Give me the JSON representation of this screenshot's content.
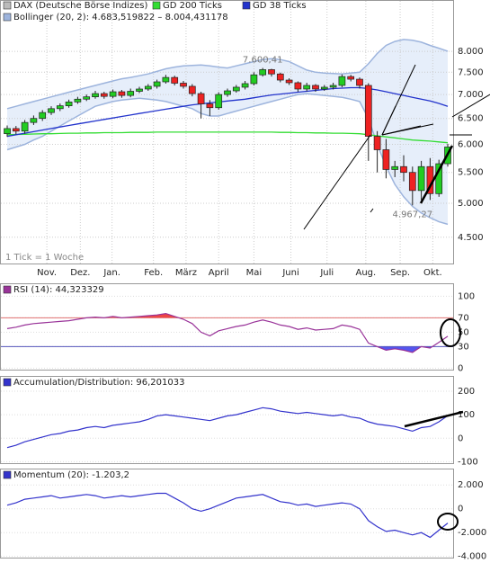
{
  "chart_data": [
    {
      "type": "candlestick",
      "name": "DAX (Deutsche Börse Indizes)",
      "open": [
        6200,
        6300,
        6250,
        6420,
        6500,
        6620,
        6700,
        6760,
        6840,
        6900,
        6950,
        7020,
        6960,
        7060,
        6980,
        7070,
        7120,
        7180,
        7280,
        7380,
        7250,
        7180,
        7020,
        6800,
        6720,
        7000,
        7080,
        7160,
        7240,
        7440,
        7560,
        7460,
        7320,
        7260,
        7120,
        7200,
        7120,
        7160,
        7200,
        7400,
        7340,
        7200,
        6150,
        5900,
        5550,
        5600,
        5500,
        5200,
        5600,
        5150,
        5650
      ],
      "high": [
        6360,
        6350,
        6470,
        6560,
        6670,
        6750,
        6810,
        6890,
        6950,
        7000,
        7080,
        7060,
        7110,
        7100,
        7130,
        7170,
        7230,
        7330,
        7440,
        7420,
        7300,
        7230,
        7060,
        6880,
        7050,
        7130,
        7210,
        7300,
        7500,
        7600.41,
        7580,
        7490,
        7360,
        7290,
        7260,
        7230,
        7210,
        7260,
        7450,
        7440,
        7380,
        7250,
        6250,
        6100,
        5700,
        5800,
        5600,
        5700,
        5750,
        5720,
        6010
      ],
      "low": [
        6140,
        6190,
        6200,
        6370,
        6450,
        6570,
        6650,
        6720,
        6800,
        6860,
        6910,
        6910,
        6920,
        6930,
        6940,
        7030,
        7080,
        7130,
        7240,
        7200,
        7130,
        6960,
        6500,
        6550,
        6680,
        6950,
        7040,
        7110,
        7200,
        7400,
        7400,
        7270,
        7210,
        7060,
        7070,
        7060,
        7080,
        7110,
        7160,
        7290,
        7130,
        5700,
        5500,
        5400,
        5420,
        5350,
        4967.27,
        5050,
        5050,
        5100,
        5600
      ],
      "close": [
        6300,
        6250,
        6420,
        6500,
        6620,
        6700,
        6760,
        6840,
        6900,
        6950,
        7020,
        6960,
        7060,
        6980,
        7070,
        7120,
        7180,
        7280,
        7380,
        7250,
        7180,
        7020,
        6800,
        6720,
        7000,
        7080,
        7160,
        7240,
        7440,
        7560,
        7460,
        7320,
        7260,
        7120,
        7200,
        7120,
        7160,
        7200,
        7400,
        7340,
        7200,
        6150,
        5900,
        5550,
        5600,
        5500,
        5200,
        5600,
        5150,
        5650,
        5950
      ],
      "up_color": "#22cc22",
      "down_color": "#ee2222",
      "legend_color": "#bbbbbb",
      "series": [
        {
          "name": "GD 200 Ticks",
          "color": "#33dd33",
          "values": [
            6180,
            6185,
            6190,
            6195,
            6200,
            6200,
            6205,
            6210,
            6210,
            6215,
            6215,
            6220,
            6220,
            6220,
            6225,
            6225,
            6225,
            6230,
            6230,
            6230,
            6230,
            6230,
            6230,
            6230,
            6230,
            6230,
            6230,
            6230,
            6230,
            6230,
            6230,
            6225,
            6225,
            6220,
            6220,
            6215,
            6215,
            6210,
            6210,
            6205,
            6200,
            6180,
            6160,
            6140,
            6120,
            6100,
            6080,
            6070,
            6060,
            6045,
            6030
          ]
        },
        {
          "name": "GD 38 Ticks",
          "color": "#2233cc",
          "values": [
            6150,
            6180,
            6210,
            6240,
            6270,
            6300,
            6330,
            6360,
            6390,
            6420,
            6450,
            6480,
            6510,
            6540,
            6570,
            6600,
            6630,
            6660,
            6690,
            6720,
            6750,
            6780,
            6800,
            6820,
            6840,
            6860,
            6880,
            6900,
            6930,
            6960,
            6990,
            7010,
            7030,
            7050,
            7070,
            7090,
            7110,
            7130,
            7140,
            7150,
            7150,
            7130,
            7100,
            7060,
            7020,
            6980,
            6940,
            6900,
            6860,
            6810,
            6750
          ]
        }
      ],
      "band": {
        "name": "Bollinger (20, 2): 4.683,519822 – 8.004,431178",
        "color": "#9db4dd",
        "fill": "#e6eefa",
        "upper": [
          6700,
          6750,
          6800,
          6850,
          6900,
          6950,
          7000,
          7050,
          7100,
          7150,
          7200,
          7250,
          7300,
          7350,
          7380,
          7420,
          7460,
          7520,
          7580,
          7620,
          7650,
          7660,
          7670,
          7650,
          7620,
          7600,
          7650,
          7700,
          7750,
          7800,
          7820,
          7800,
          7750,
          7650,
          7550,
          7500,
          7480,
          7470,
          7460,
          7480,
          7500,
          7700,
          7950,
          8150,
          8250,
          8300,
          8280,
          8230,
          8150,
          8080,
          8004.431178
        ],
        "lower": [
          5900,
          5950,
          6000,
          6080,
          6150,
          6250,
          6350,
          6450,
          6550,
          6650,
          6750,
          6800,
          6850,
          6880,
          6900,
          6920,
          6900,
          6880,
          6850,
          6800,
          6750,
          6700,
          6600,
          6550,
          6550,
          6600,
          6650,
          6700,
          6750,
          6800,
          6850,
          6900,
          6950,
          7000,
          7020,
          7000,
          6980,
          6960,
          6940,
          6900,
          6850,
          6500,
          6000,
          5600,
          5300,
          5100,
          4950,
          4850,
          4780,
          4720,
          4683.519822
        ]
      },
      "log_scale": true,
      "ylim": [
        4160,
        8700
      ],
      "yticks": [
        {
          "value": 8000,
          "label": "8.000"
        },
        {
          "value": 7500,
          "label": "7.500"
        },
        {
          "value": 7000,
          "label": "7.000"
        },
        {
          "value": 6500,
          "label": "6.500"
        },
        {
          "value": 6000,
          "label": "6.000"
        },
        {
          "value": 5500,
          "label": "5.500"
        },
        {
          "value": 5000,
          "label": "5.000"
        },
        {
          "value": 4500,
          "label": "4.500"
        }
      ],
      "xticks": [
        {
          "value": 4.5,
          "label": "Nov."
        },
        {
          "value": 8.3,
          "label": "Dez."
        },
        {
          "value": 11.9,
          "label": "Jan."
        },
        {
          "value": 16.6,
          "label": "Feb."
        },
        {
          "value": 20.3,
          "label": "März"
        },
        {
          "value": 24,
          "label": "April"
        },
        {
          "value": 28,
          "label": "Mai"
        },
        {
          "value": 32.2,
          "label": "Juni"
        },
        {
          "value": 36.3,
          "label": "Juli"
        },
        {
          "value": 40.7,
          "label": "Aug."
        },
        {
          "value": 44.6,
          "label": "Sep."
        },
        {
          "value": 48.3,
          "label": "Okt."
        }
      ],
      "grid": true,
      "annotations": [
        {
          "index": 29,
          "at": "high",
          "label": "7.600,41"
        },
        {
          "index": 46,
          "at": "low",
          "label": "4.967,27"
        }
      ],
      "footnote": "1 Tick = 1 Woche"
    },
    {
      "type": "line",
      "title": "RSI (14): 44,323329",
      "color": "#993399",
      "values": [
        55,
        57,
        60,
        62,
        63,
        64,
        65,
        66,
        68,
        70,
        71,
        70,
        72,
        70,
        71,
        72,
        73,
        74,
        76,
        72,
        68,
        62,
        50,
        45,
        52,
        55,
        58,
        60,
        64,
        67,
        64,
        60,
        58,
        54,
        56,
        53,
        54,
        55,
        60,
        58,
        54,
        35,
        30,
        25,
        27,
        25,
        22,
        30,
        28,
        36,
        44.323329
      ],
      "ylim": [
        -2,
        103
      ],
      "yticks": [
        100,
        70,
        50,
        30,
        0
      ],
      "reference_lines": [
        {
          "value": 70,
          "color": "#e07070",
          "fill": "#ee4444"
        },
        {
          "value": 30,
          "color": "#5555bb",
          "fill": "#5555ee"
        }
      ]
    },
    {
      "type": "line",
      "title": "Accumulation/Distribution: 96,201033",
      "color": "#3333cc",
      "values": [
        -40,
        -30,
        -15,
        -5,
        5,
        15,
        20,
        30,
        35,
        45,
        50,
        45,
        55,
        60,
        65,
        70,
        80,
        95,
        100,
        95,
        90,
        85,
        80,
        75,
        85,
        95,
        100,
        110,
        120,
        130,
        125,
        115,
        110,
        105,
        110,
        105,
        100,
        95,
        100,
        90,
        85,
        70,
        60,
        55,
        50,
        40,
        30,
        45,
        50,
        70,
        96.201033
      ],
      "ylim": [
        -110,
        265
      ],
      "yticks": [
        200,
        100,
        0,
        -100
      ]
    },
    {
      "type": "line",
      "title": "Momentum (20): -1.203,2",
      "color": "#3333cc",
      "values": [
        300,
        500,
        800,
        900,
        1000,
        1100,
        900,
        1000,
        1100,
        1200,
        1100,
        900,
        1000,
        1100,
        1000,
        1100,
        1200,
        1300,
        1300,
        900,
        500,
        0,
        -200,
        0,
        300,
        600,
        900,
        1000,
        1100,
        1200,
        900,
        600,
        500,
        300,
        400,
        200,
        300,
        400,
        500,
        400,
        0,
        -1000,
        -1500,
        -1900,
        -1800,
        -2000,
        -2200,
        -2000,
        -2400,
        -1800,
        -1203.2
      ],
      "ylim": [
        -4100,
        3300
      ],
      "yticks": [
        {
          "value": 2000,
          "label": "2.000"
        },
        0,
        {
          "value": -2000,
          "label": "-2.000"
        },
        {
          "value": -4000,
          "label": "-4.000"
        }
      ]
    }
  ]
}
